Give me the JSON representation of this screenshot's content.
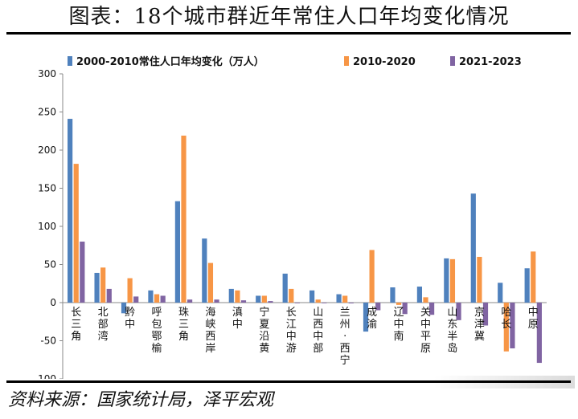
{
  "header": {
    "title": "图表：18个城市群近年常住人口年均变化情况"
  },
  "footer": {
    "source": "资料来源：国家统计局，泽平宏观"
  },
  "colors": {
    "series": [
      "#4f81bd",
      "#f79646",
      "#8064a2"
    ]
  },
  "chart_data": {
    "type": "bar",
    "title": "",
    "xlabel": "",
    "ylabel": "",
    "ylim": [
      -100,
      300
    ],
    "yticks": [
      300,
      250,
      200,
      150,
      100,
      50,
      0,
      -50,
      -100
    ],
    "ytick_labels": [
      "300",
      "250",
      "200",
      "150",
      "100",
      "50",
      "0",
      "-50",
      "-100"
    ],
    "grid": false,
    "legend": "top",
    "categories": [
      "长三角",
      "北部湾",
      "黔中",
      "呼包鄂榆",
      "珠三角",
      "海峡西岸",
      "滇中",
      "宁夏沿黄",
      "长江中游",
      "山西中部",
      "兰州-西宁",
      "成渝",
      "辽中南",
      "关中平原",
      "山东半岛",
      "京津冀",
      "哈长",
      "中原"
    ],
    "series": [
      {
        "name": "2000-2010常住人口年均变化（万人）",
        "values": [
          241,
          39,
          -14,
          16,
          133,
          84,
          18,
          9,
          38,
          16,
          11,
          -38,
          20,
          21,
          58,
          143,
          26,
          45
        ]
      },
      {
        "name": "2010-2020",
        "values": [
          182,
          46,
          32,
          11,
          219,
          52,
          16,
          9,
          18,
          4,
          9,
          69,
          -3,
          7,
          57,
          60,
          -64,
          67
        ]
      },
      {
        "name": "2021-2023",
        "values": [
          80,
          18,
          8,
          9,
          4,
          4,
          3,
          2,
          0,
          0,
          -1,
          -10,
          -15,
          -16,
          -23,
          -30,
          -60,
          -79
        ]
      }
    ]
  }
}
